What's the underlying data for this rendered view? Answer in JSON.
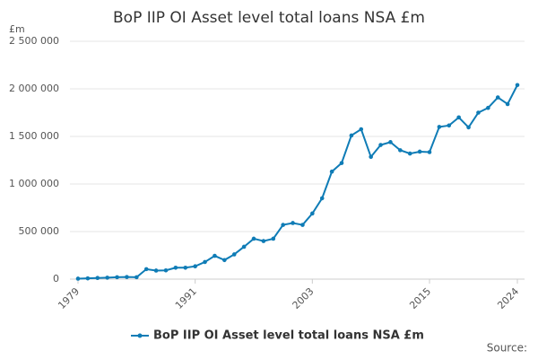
{
  "chart_data": {
    "type": "line",
    "title": "BoP IIP OI Asset level total loans NSA £m",
    "y_unit": "£m",
    "source": "Source:",
    "x": [
      1979,
      1980,
      1981,
      1982,
      1983,
      1984,
      1985,
      1986,
      1987,
      1988,
      1989,
      1990,
      1991,
      1992,
      1993,
      1994,
      1995,
      1996,
      1997,
      1998,
      1999,
      2000,
      2001,
      2002,
      2003,
      2004,
      2005,
      2006,
      2007,
      2008,
      2009,
      2010,
      2011,
      2012,
      2013,
      2014,
      2015,
      2016,
      2017,
      2018,
      2019,
      2020,
      2021,
      2022,
      2023,
      2024
    ],
    "series": [
      {
        "name": "BoP IIP OI Asset level total loans NSA £m",
        "color": "#0f7cb6",
        "values": [
          5000,
          8000,
          12000,
          15000,
          20000,
          22000,
          20000,
          105000,
          90000,
          92000,
          120000,
          120000,
          135000,
          180000,
          245000,
          200000,
          260000,
          340000,
          425000,
          400000,
          425000,
          570000,
          590000,
          570000,
          690000,
          850000,
          1130000,
          1220000,
          1510000,
          1575000,
          1285000,
          1410000,
          1440000,
          1355000,
          1320000,
          1340000,
          1335000,
          1600000,
          1615000,
          1700000,
          1595000,
          1750000,
          1800000,
          1910000,
          1840000,
          2040000
        ]
      }
    ],
    "xlim": [
      1979,
      2024
    ],
    "xticks": [
      1979,
      1991,
      2003,
      2015,
      2024
    ],
    "ylim": [
      0,
      2500000
    ],
    "yticks": [
      0,
      {
        "value": 500000,
        "label": "500 000"
      },
      {
        "value": 1000000,
        "label": "1 000 000"
      },
      {
        "value": 1500000,
        "label": "1 500 000"
      },
      {
        "value": 2000000,
        "label": "2 000 000"
      },
      {
        "value": 2500000,
        "label": "2 500 000"
      }
    ],
    "grid": true
  }
}
